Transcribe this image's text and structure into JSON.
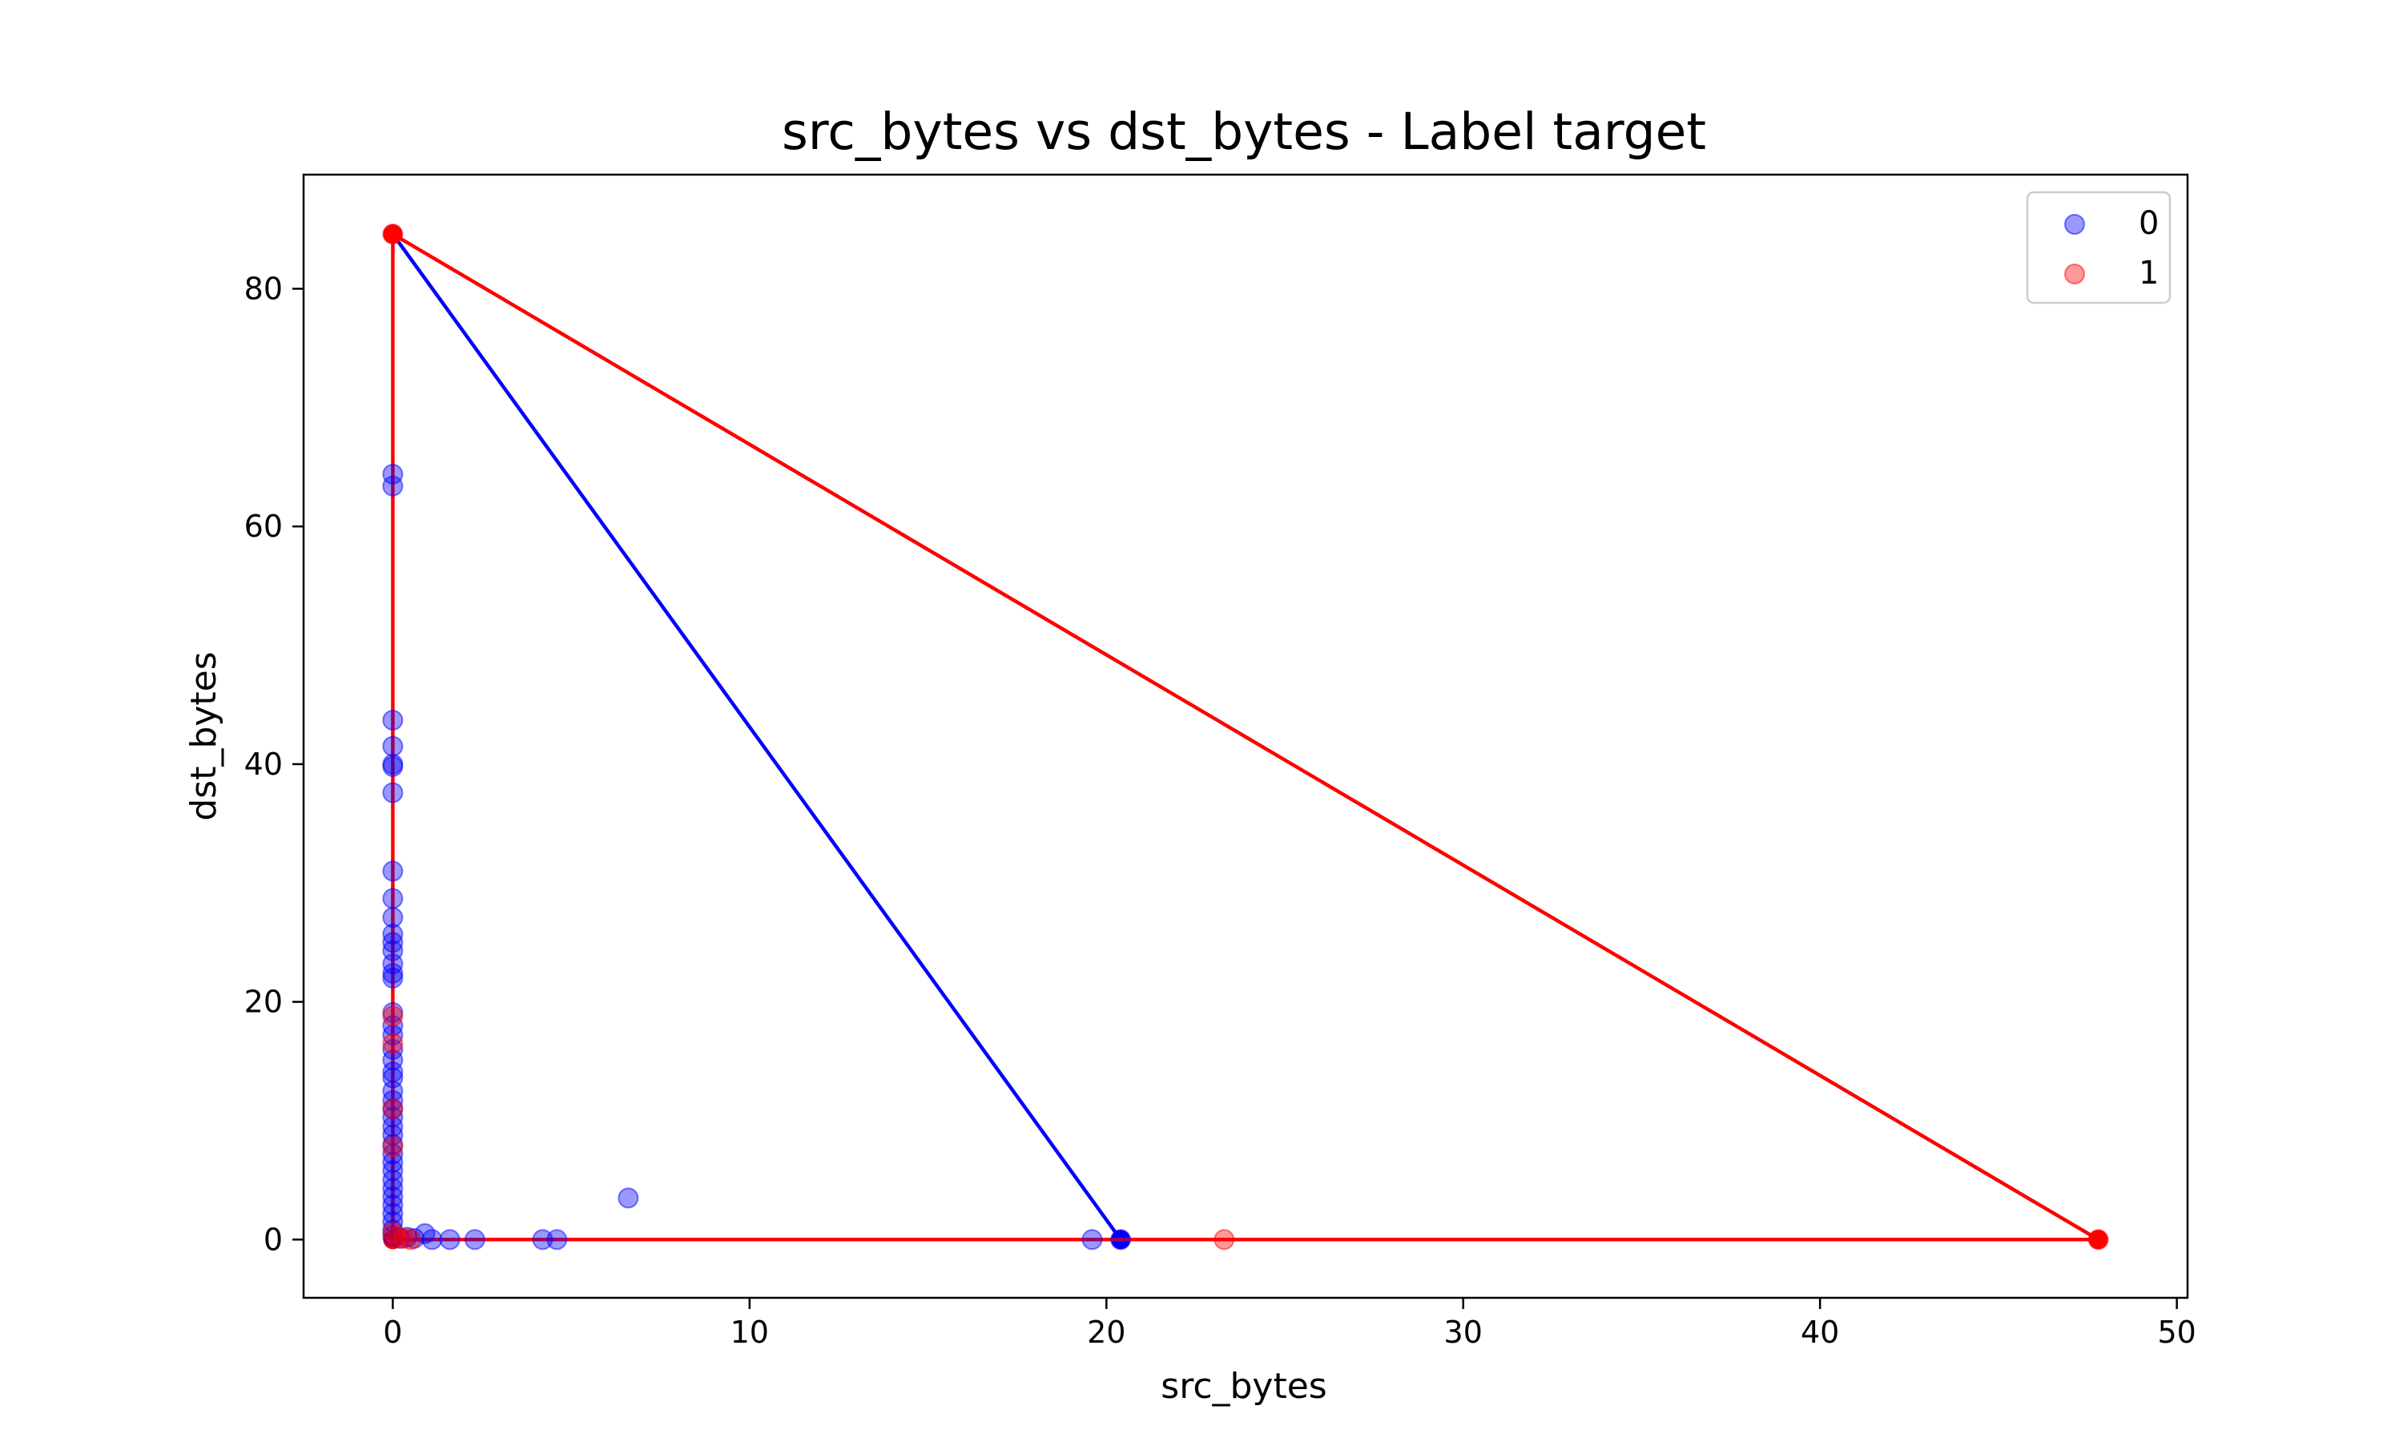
{
  "chart_data": {
    "type": "scatter",
    "title": "src_bytes vs dst_bytes - Label target",
    "xlabel": "src_bytes",
    "ylabel": "dst_bytes",
    "xlim": [
      -2.5,
      50.3
    ],
    "ylim": [
      -4.9,
      89.6
    ],
    "xticks": [
      0,
      10,
      20,
      30,
      40,
      50
    ],
    "yticks": [
      0,
      20,
      40,
      60,
      80
    ],
    "grid": false,
    "legend": {
      "placement": "top-right",
      "entries": [
        "0",
        "1"
      ]
    },
    "series": [
      {
        "name": "0",
        "color": "#0000ff",
        "points": [
          [
            0,
            64.4
          ],
          [
            0,
            63.4
          ],
          [
            0,
            43.7
          ],
          [
            0,
            41.5
          ],
          [
            0,
            40.0
          ],
          [
            0,
            39.8
          ],
          [
            0,
            37.6
          ],
          [
            0,
            31.0
          ],
          [
            0,
            28.7
          ],
          [
            0,
            27.1
          ],
          [
            0,
            25.7
          ],
          [
            0,
            25.0
          ],
          [
            0,
            24.3
          ],
          [
            0,
            23.2
          ],
          [
            0,
            22.4
          ],
          [
            0,
            22.0
          ],
          [
            0,
            19.1
          ],
          [
            0,
            18.0
          ],
          [
            0,
            17.2
          ],
          [
            0,
            16.0
          ],
          [
            0,
            15.1
          ],
          [
            0,
            14.1
          ],
          [
            0,
            13.6
          ],
          [
            0,
            12.5
          ],
          [
            0,
            11.7
          ],
          [
            0,
            11.0
          ],
          [
            0,
            10.3
          ],
          [
            0,
            9.5
          ],
          [
            0,
            8.8
          ],
          [
            0,
            8.0
          ],
          [
            0,
            7.2
          ],
          [
            0,
            6.5
          ],
          [
            0,
            5.8
          ],
          [
            0,
            5.0
          ],
          [
            0,
            4.3
          ],
          [
            0,
            3.6
          ],
          [
            0,
            2.9
          ],
          [
            0,
            2.2
          ],
          [
            0,
            1.5
          ],
          [
            0,
            0.8
          ],
          [
            0,
            0.3
          ],
          [
            0.2,
            0.1
          ],
          [
            0.4,
            0.2
          ],
          [
            0.6,
            0.1
          ],
          [
            0.9,
            0.5
          ],
          [
            1.1,
            0.0
          ],
          [
            1.6,
            0.0
          ],
          [
            2.3,
            0.0
          ],
          [
            4.2,
            0.0
          ],
          [
            4.6,
            0.0
          ],
          [
            6.6,
            3.5
          ],
          [
            19.6,
            0.0
          ],
          [
            20.4,
            0.0
          ]
        ],
        "line": [
          [
            20.4,
            0.0
          ],
          [
            0,
            84.6
          ]
        ]
      },
      {
        "name": "1",
        "color": "#ff0000",
        "points": [
          [
            0,
            84.6
          ],
          [
            0,
            18.8
          ],
          [
            0,
            16.5
          ],
          [
            0,
            11.0
          ],
          [
            0,
            7.8
          ],
          [
            0,
            0.6
          ],
          [
            0.1,
            0.2
          ],
          [
            0.3,
            0.1
          ],
          [
            0.5,
            0.0
          ],
          [
            23.3,
            0.0
          ],
          [
            47.8,
            0.0
          ]
        ],
        "line": [
          [
            0,
            0.0
          ],
          [
            0,
            84.6
          ],
          [
            47.8,
            0.0
          ],
          [
            0,
            0.0
          ]
        ]
      }
    ]
  }
}
